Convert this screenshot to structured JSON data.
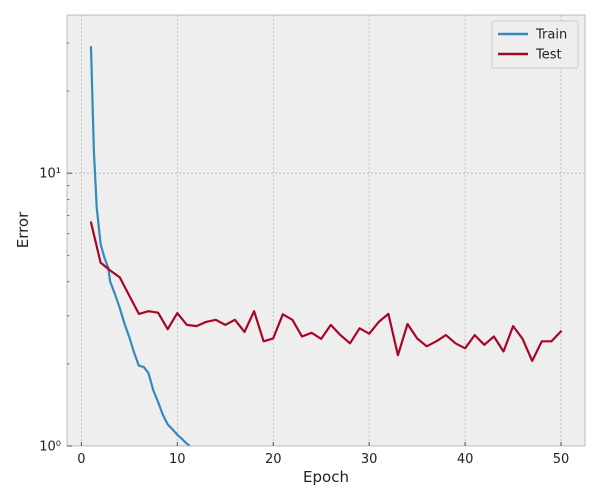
{
  "chart_data": {
    "type": "line",
    "title": "",
    "xlabel": "Epoch",
    "ylabel": "Error",
    "xlim": [
      -1.5,
      52.5
    ],
    "ylim": [
      1,
      38
    ],
    "yscale": "log",
    "grid": true,
    "legend_position": "top-right",
    "x_ticks": [
      0,
      10,
      20,
      30,
      40,
      50
    ],
    "x_tick_labels": [
      "0",
      "10",
      "20",
      "30",
      "40",
      "50"
    ],
    "y_ticks": [
      1,
      10
    ],
    "y_tick_labels": [
      "10⁰",
      "10¹"
    ],
    "series": [
      {
        "name": "Train",
        "color": "#348ABD",
        "x": [
          1,
          1.3,
          1.6,
          2,
          2.4,
          2.8,
          3,
          3.5,
          4,
          4.5,
          5,
          5.5,
          6,
          6.5,
          7,
          7.5,
          8,
          8.5,
          9,
          9.5,
          10,
          10.5,
          11,
          11.3
        ],
        "y": [
          29,
          12,
          7.5,
          5.5,
          4.9,
          4.5,
          4.0,
          3.6,
          3.2,
          2.8,
          2.5,
          2.2,
          1.97,
          1.95,
          1.85,
          1.6,
          1.45,
          1.3,
          1.2,
          1.15,
          1.1,
          1.06,
          1.02,
          0.99
        ]
      },
      {
        "name": "Test",
        "color": "#A60628",
        "x": [
          1,
          2,
          3,
          4,
          5,
          6,
          7,
          8,
          9,
          10,
          11,
          12,
          13,
          14,
          15,
          16,
          17,
          18,
          19,
          20,
          21,
          22,
          23,
          24,
          25,
          26,
          27,
          28,
          29,
          30,
          31,
          32,
          33,
          34,
          35,
          36,
          37,
          38,
          39,
          40,
          41,
          42,
          43,
          44,
          45,
          46,
          47,
          48,
          49,
          50
        ],
        "y": [
          6.6,
          4.7,
          4.4,
          4.15,
          3.55,
          3.05,
          3.12,
          3.08,
          2.68,
          3.07,
          2.78,
          2.75,
          2.85,
          2.9,
          2.78,
          2.9,
          2.62,
          3.12,
          2.42,
          2.48,
          3.04,
          2.9,
          2.52,
          2.6,
          2.47,
          2.78,
          2.55,
          2.38,
          2.7,
          2.58,
          2.85,
          3.05,
          2.15,
          2.8,
          2.48,
          2.32,
          2.42,
          2.55,
          2.38,
          2.28,
          2.55,
          2.35,
          2.52,
          2.22,
          2.75,
          2.47,
          2.05,
          2.42,
          2.42,
          2.63
        ]
      }
    ]
  }
}
